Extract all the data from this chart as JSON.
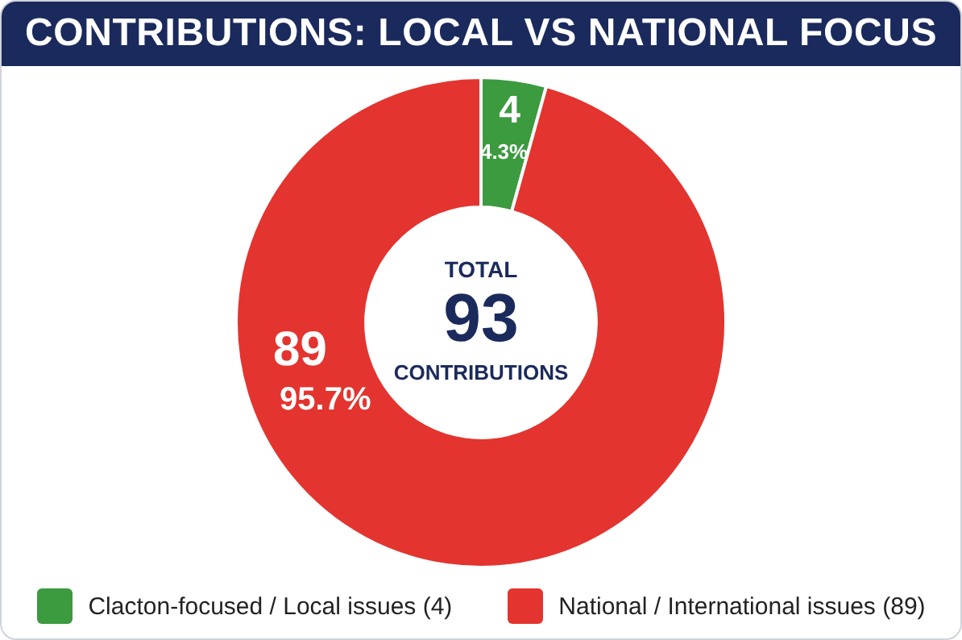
{
  "chart_data": {
    "type": "donut",
    "title": "CONTRIBUTIONS: LOCAL VS NATIONAL FOCUS",
    "categories": [
      "Clacton-focused / Local issues (4)",
      "National / International issues (89)"
    ],
    "values": [
      4,
      89
    ],
    "colors": [
      "#3c9a3f",
      "#e3342f"
    ],
    "value_labels": [
      "4\n4.3%",
      "89\n95.7%"
    ],
    "annotations": [
      "TOTAL",
      "93",
      "CONTRIBUTIONS"
    ],
    "legend": "bottom"
  }
}
